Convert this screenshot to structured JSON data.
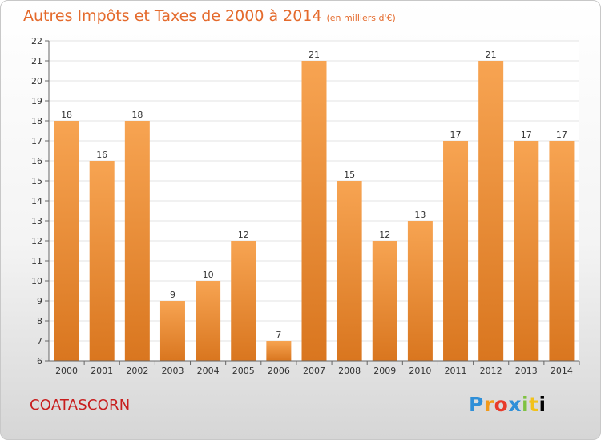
{
  "title": "Autres Impôts et Taxes de 2000 à 2014",
  "unit_label": "(en milliers d'€)",
  "commune": "COATASCORN",
  "logo": {
    "text": "Proxiti",
    "letters": [
      "P",
      "r",
      "o",
      "x",
      "i",
      "t",
      "i"
    ]
  },
  "colors": {
    "bar_top": "#f7a452",
    "bar_bottom": "#d9761f",
    "title": "#e46a2c",
    "commune": "#c81e1e"
  },
  "chart_data": {
    "type": "bar",
    "categories": [
      "2000",
      "2001",
      "2002",
      "2003",
      "2004",
      "2005",
      "2006",
      "2007",
      "2008",
      "2009",
      "2010",
      "2011",
      "2012",
      "2013",
      "2014"
    ],
    "values": [
      18,
      16,
      18,
      9,
      10,
      12,
      7,
      21,
      15,
      12,
      13,
      17,
      21,
      17,
      17
    ],
    "ylim": [
      6,
      22
    ],
    "yticks": [
      6,
      7,
      8,
      9,
      10,
      11,
      12,
      13,
      14,
      15,
      16,
      17,
      18,
      19,
      20,
      21,
      22
    ],
    "grid": true,
    "data_labels": true,
    "xlabel": "",
    "ylabel": ""
  }
}
